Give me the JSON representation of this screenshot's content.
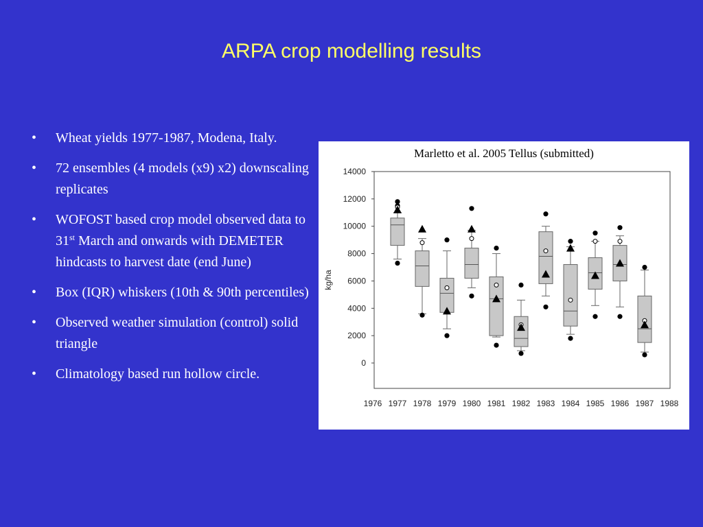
{
  "slide": {
    "title": "ARPA crop modelling results",
    "bullets": [
      {
        "text": "Wheat yields 1977-1987, Modena, Italy."
      },
      {
        "text": "72 ensembles (4 models (x9) x2) downscaling replicates"
      },
      {
        "pre": "WOFOST based crop model observed data to 31",
        "sup": "st",
        "post": " March and onwards with DEMETER hindcasts to harvest date (end June)"
      },
      {
        "text": "Box (IQR) whiskers (10th & 90th percentiles)"
      },
      {
        "text": "Observed weather simulation (control) solid triangle"
      },
      {
        "text": "Climatology based run hollow circle."
      }
    ],
    "figure_caption": "Marletto et al. 2005 Tellus (submitted)"
  },
  "colors": {
    "background": "#3333CC",
    "title": "#FFFF66",
    "text": "#FFFFFF",
    "box_fill": "#C8C8C8"
  },
  "chart_data": {
    "type": "box",
    "ylabel": "kg/ha",
    "ylim": [
      0,
      14000
    ],
    "yticks": [
      0,
      2000,
      4000,
      6000,
      8000,
      10000,
      12000,
      14000
    ],
    "xlim": [
      1976,
      1988
    ],
    "xticks": [
      1976,
      1977,
      1978,
      1979,
      1980,
      1981,
      1982,
      1983,
      1984,
      1985,
      1986,
      1987,
      1988
    ],
    "grid": false,
    "boxes": [
      {
        "year": 1977,
        "p10": 7600,
        "q1": 8600,
        "median": 10100,
        "q3": 10600,
        "p90": 11000,
        "outliers": [
          7300,
          11500,
          11800
        ],
        "observed": 11200,
        "climatology": 11400
      },
      {
        "year": 1978,
        "p10": 3600,
        "q1": 5600,
        "median": 7100,
        "q3": 8200,
        "p90": 9100,
        "outliers": [
          3500
        ],
        "observed": 9800,
        "climatology": 8800
      },
      {
        "year": 1979,
        "p10": 2500,
        "q1": 3700,
        "median": 5100,
        "q3": 6200,
        "p90": 8200,
        "outliers": [
          2000,
          9000
        ],
        "observed": 3800,
        "climatology": 5500
      },
      {
        "year": 1980,
        "p10": 5500,
        "q1": 6200,
        "median": 7200,
        "q3": 8400,
        "p90": 9700,
        "outliers": [
          4900,
          11300
        ],
        "observed": 9800,
        "climatology": 9100
      },
      {
        "year": 1981,
        "p10": 1900,
        "q1": 2000,
        "median": 4700,
        "q3": 6300,
        "p90": 8000,
        "outliers": [
          1300,
          8400
        ],
        "observed": 4700,
        "climatology": 5700
      },
      {
        "year": 1982,
        "p10": 900,
        "q1": 1200,
        "median": 1800,
        "q3": 3400,
        "p90": 4600,
        "outliers": [
          700,
          5700
        ],
        "observed": 2600,
        "climatology": 2800
      },
      {
        "year": 1983,
        "p10": 4900,
        "q1": 5800,
        "median": 7800,
        "q3": 9600,
        "p90": 10000,
        "outliers": [
          4100,
          10900
        ],
        "observed": 6500,
        "climatology": 8200
      },
      {
        "year": 1984,
        "p10": 2100,
        "q1": 2700,
        "median": 3800,
        "q3": 7200,
        "p90": 8500,
        "outliers": [
          1800,
          8900
        ],
        "observed": 8400,
        "climatology": 4600
      },
      {
        "year": 1985,
        "p10": 4200,
        "q1": 5400,
        "median": 6600,
        "q3": 7700,
        "p90": 8900,
        "outliers": [
          3400,
          9500
        ],
        "observed": 6400,
        "climatology": 8900
      },
      {
        "year": 1986,
        "p10": 4100,
        "q1": 6000,
        "median": 7200,
        "q3": 8600,
        "p90": 9300,
        "outliers": [
          3400,
          9900
        ],
        "observed": 7300,
        "climatology": 8900
      },
      {
        "year": 1987,
        "p10": 800,
        "q1": 1500,
        "median": 2500,
        "q3": 4900,
        "p90": 6800,
        "outliers": [
          600,
          7000
        ],
        "observed": 2800,
        "climatology": 3100
      }
    ]
  }
}
